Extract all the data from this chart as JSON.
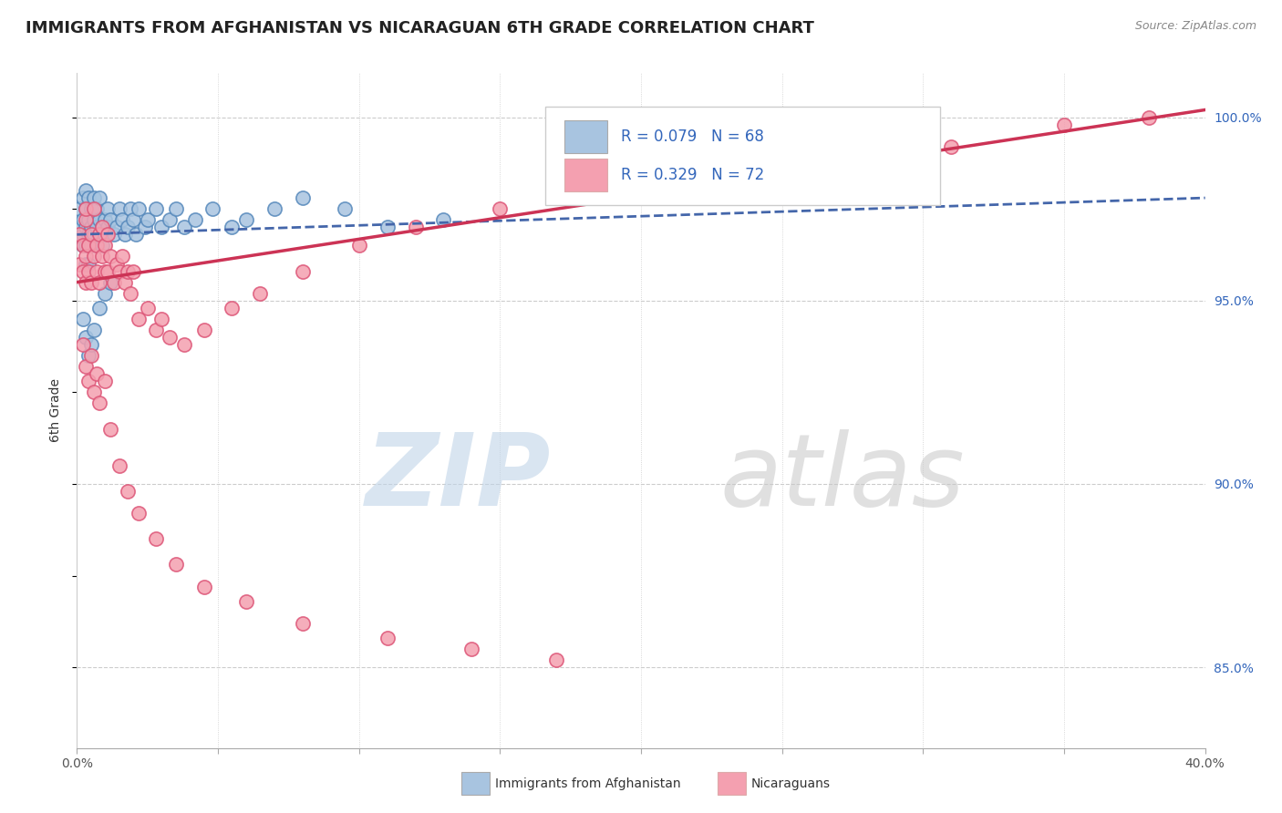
{
  "title": "IMMIGRANTS FROM AFGHANISTAN VS NICARAGUAN 6TH GRADE CORRELATION CHART",
  "source_text": "Source: ZipAtlas.com",
  "ylabel": "6th Grade",
  "xlim": [
    0.0,
    0.4
  ],
  "ylim": [
    0.828,
    1.012
  ],
  "xticks": [
    0.0,
    0.05,
    0.1,
    0.15,
    0.2,
    0.25,
    0.3,
    0.35,
    0.4
  ],
  "yticks_right": [
    0.85,
    0.9,
    0.95,
    1.0
  ],
  "ytick_right_labels": [
    "85.0%",
    "90.0%",
    "95.0%",
    "100.0%"
  ],
  "blue_color": "#a8c4e0",
  "blue_edge_color": "#5588bb",
  "pink_color": "#f4a0b0",
  "pink_edge_color": "#dd5577",
  "trend_blue_color": "#4466aa",
  "trend_pink_color": "#cc3355",
  "legend_text_color": "#3366bb",
  "title_color": "#222222",
  "source_color": "#888888",
  "axis_label_color": "#333333",
  "tick_color": "#555555",
  "grid_color": "#cccccc",
  "watermark_zip_color": "#c0d4e8",
  "watermark_atlas_color": "#c8c8c8",
  "title_fontsize": 13,
  "axis_label_fontsize": 10,
  "tick_fontsize": 10,
  "legend_fontsize": 12,
  "blue_scatter_x": [
    0.001,
    0.001,
    0.002,
    0.002,
    0.002,
    0.002,
    0.003,
    0.003,
    0.003,
    0.003,
    0.003,
    0.004,
    0.004,
    0.004,
    0.004,
    0.005,
    0.005,
    0.005,
    0.006,
    0.006,
    0.006,
    0.007,
    0.007,
    0.007,
    0.008,
    0.008,
    0.008,
    0.009,
    0.009,
    0.01,
    0.01,
    0.011,
    0.011,
    0.012,
    0.013,
    0.014,
    0.015,
    0.016,
    0.017,
    0.018,
    0.019,
    0.02,
    0.021,
    0.022,
    0.024,
    0.025,
    0.028,
    0.03,
    0.033,
    0.035,
    0.038,
    0.042,
    0.048,
    0.055,
    0.06,
    0.07,
    0.08,
    0.095,
    0.11,
    0.13,
    0.002,
    0.003,
    0.004,
    0.005,
    0.006,
    0.008,
    0.01,
    0.012
  ],
  "blue_scatter_y": [
    0.97,
    0.975,
    0.968,
    0.972,
    0.978,
    0.965,
    0.97,
    0.975,
    0.965,
    0.96,
    0.98,
    0.968,
    0.972,
    0.978,
    0.96,
    0.97,
    0.975,
    0.965,
    0.972,
    0.968,
    0.978,
    0.97,
    0.965,
    0.975,
    0.972,
    0.968,
    0.978,
    0.97,
    0.965,
    0.972,
    0.968,
    0.97,
    0.975,
    0.972,
    0.968,
    0.97,
    0.975,
    0.972,
    0.968,
    0.97,
    0.975,
    0.972,
    0.968,
    0.975,
    0.97,
    0.972,
    0.975,
    0.97,
    0.972,
    0.975,
    0.97,
    0.972,
    0.975,
    0.97,
    0.972,
    0.975,
    0.978,
    0.975,
    0.97,
    0.972,
    0.945,
    0.94,
    0.935,
    0.938,
    0.942,
    0.948,
    0.952,
    0.955
  ],
  "pink_scatter_x": [
    0.001,
    0.001,
    0.002,
    0.002,
    0.003,
    0.003,
    0.003,
    0.003,
    0.004,
    0.004,
    0.005,
    0.005,
    0.006,
    0.006,
    0.007,
    0.007,
    0.008,
    0.008,
    0.009,
    0.009,
    0.01,
    0.01,
    0.011,
    0.011,
    0.012,
    0.013,
    0.014,
    0.015,
    0.016,
    0.017,
    0.018,
    0.019,
    0.02,
    0.022,
    0.025,
    0.028,
    0.03,
    0.033,
    0.038,
    0.045,
    0.055,
    0.065,
    0.08,
    0.1,
    0.12,
    0.15,
    0.18,
    0.22,
    0.26,
    0.31,
    0.35,
    0.38,
    0.002,
    0.003,
    0.004,
    0.005,
    0.006,
    0.007,
    0.008,
    0.01,
    0.012,
    0.015,
    0.018,
    0.022,
    0.028,
    0.035,
    0.045,
    0.06,
    0.08,
    0.11,
    0.14,
    0.17
  ],
  "pink_scatter_y": [
    0.968,
    0.96,
    0.965,
    0.958,
    0.972,
    0.962,
    0.955,
    0.975,
    0.965,
    0.958,
    0.968,
    0.955,
    0.962,
    0.975,
    0.958,
    0.965,
    0.968,
    0.955,
    0.962,
    0.97,
    0.958,
    0.965,
    0.968,
    0.958,
    0.962,
    0.955,
    0.96,
    0.958,
    0.962,
    0.955,
    0.958,
    0.952,
    0.958,
    0.945,
    0.948,
    0.942,
    0.945,
    0.94,
    0.938,
    0.942,
    0.948,
    0.952,
    0.958,
    0.965,
    0.97,
    0.975,
    0.98,
    0.985,
    0.988,
    0.992,
    0.998,
    1.0,
    0.938,
    0.932,
    0.928,
    0.935,
    0.925,
    0.93,
    0.922,
    0.928,
    0.915,
    0.905,
    0.898,
    0.892,
    0.885,
    0.878,
    0.872,
    0.868,
    0.862,
    0.858,
    0.855,
    0.852
  ],
  "blue_trend_x": [
    0.0,
    0.4
  ],
  "blue_trend_y": [
    0.968,
    0.978
  ],
  "pink_trend_x": [
    0.0,
    0.4
  ],
  "pink_trend_y": [
    0.955,
    1.002
  ]
}
